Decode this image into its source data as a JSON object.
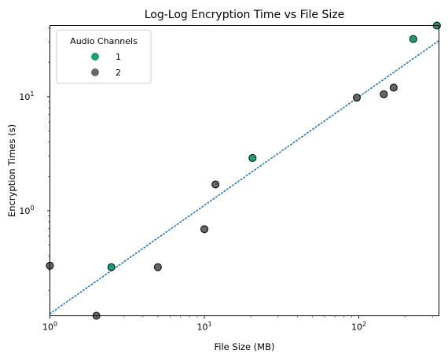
{
  "chart_data": {
    "type": "scatter",
    "title": "Log-Log Encryption Time vs File Size",
    "xlabel": "File Size (MB)",
    "ylabel": "Encryption Times (s)",
    "xscale": "log",
    "yscale": "log",
    "xlim": [
      1,
      330
    ],
    "ylim": [
      0.12,
      42
    ],
    "x_ticks": [
      {
        "value": 1,
        "label": "10",
        "exp": "0"
      },
      {
        "value": 10,
        "label": "10",
        "exp": "1"
      },
      {
        "value": 100,
        "label": "10",
        "exp": "2"
      }
    ],
    "y_ticks": [
      {
        "value": 1,
        "label": "10",
        "exp": "0"
      },
      {
        "value": 10,
        "label": "10",
        "exp": "1"
      }
    ],
    "grid": false,
    "legend": {
      "title": "Audio Channels",
      "placement": "top-left",
      "entries": [
        {
          "label": "1",
          "color": "#1b9e77"
        },
        {
          "label": "2",
          "color": "#666666"
        }
      ]
    },
    "trendline": {
      "style": "dotted",
      "color": "#1f77b4",
      "points": [
        [
          1,
          0.125
        ],
        [
          330,
          31
        ]
      ]
    },
    "series": [
      {
        "name": "1",
        "color": "#1b9e77",
        "points": [
          [
            2.5,
            0.32
          ],
          [
            20.5,
            2.9
          ],
          [
            225,
            32
          ],
          [
            320,
            42
          ]
        ]
      },
      {
        "name": "2",
        "color": "#666666",
        "points": [
          [
            1,
            0.33
          ],
          [
            2,
            0.12
          ],
          [
            5,
            0.32
          ],
          [
            10,
            0.69
          ],
          [
            11.8,
            1.7
          ],
          [
            97,
            9.8
          ],
          [
            145,
            10.5
          ],
          [
            168,
            12
          ]
        ]
      }
    ]
  }
}
